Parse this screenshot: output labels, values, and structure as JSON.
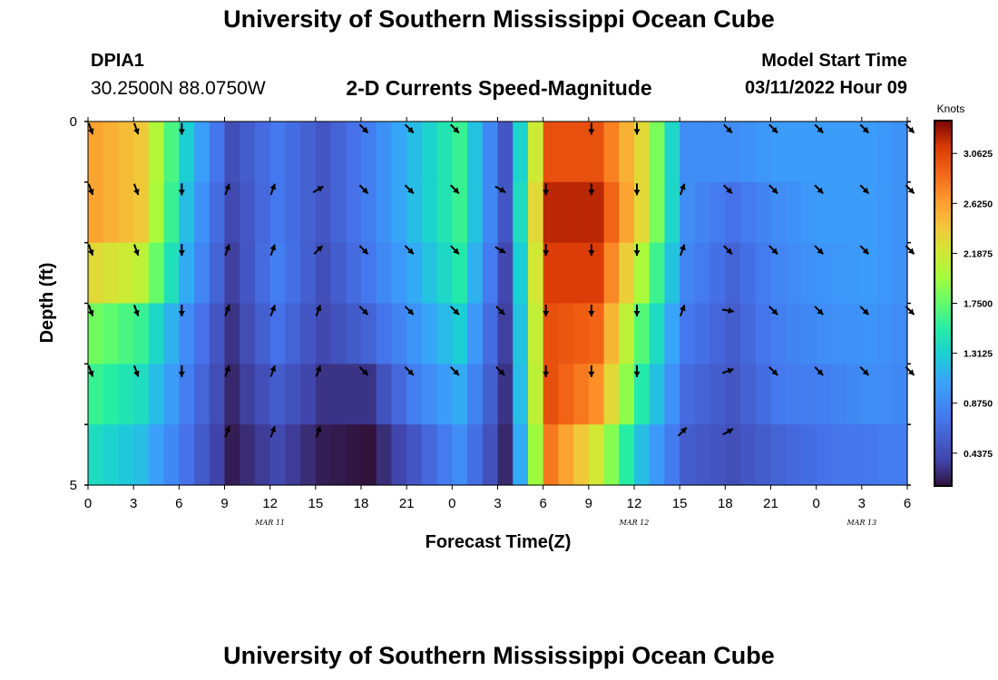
{
  "header": {
    "title": "University of Southern Mississippi Ocean Cube",
    "station": "DPIA1",
    "coordinates": "30.2500N  88.0750W",
    "subtitle": "2-D Currents Speed-Magnitude",
    "model_start_label": "Model Start Time",
    "model_start_value": "03/11/2022 Hour 09"
  },
  "footer": {
    "title": "University of Southern Mississippi Ocean Cube"
  },
  "chart_data": {
    "type": "heatmap",
    "title": "2-D Currents Speed-Magnitude",
    "xlabel": "Forecast Time(Z)",
    "ylabel": "Depth (ft)",
    "x_tick_labels": [
      "0",
      "3",
      "6",
      "9",
      "12",
      "15",
      "18",
      "21",
      "0",
      "3",
      "6",
      "9",
      "12",
      "15",
      "18",
      "21",
      "0",
      "3",
      "6"
    ],
    "date_labels": [
      {
        "text": "MAR 11",
        "at_tick": 4
      },
      {
        "text": "MAR 12",
        "at_tick": 12
      },
      {
        "text": "MAR 13",
        "at_tick": 17
      }
    ],
    "y_range": [
      0,
      5
    ],
    "y_tick_labels": [
      "0",
      "5"
    ],
    "colorbar": {
      "unit": "Knots",
      "range": [
        0.15,
        3.35
      ],
      "tick_labels": [
        "3.0625",
        "2.6250",
        "2.1875",
        "1.7500",
        "1.3125",
        "0.8750",
        "0.4375"
      ],
      "tick_values": [
        3.0625,
        2.625,
        2.1875,
        1.75,
        1.3125,
        0.875,
        0.4375
      ]
    },
    "hours": [
      0,
      3,
      6,
      9,
      12,
      15,
      18,
      21,
      24,
      27,
      30,
      33,
      36,
      39,
      42,
      45,
      48,
      51,
      54
    ],
    "speed_by_layer_knots": [
      [
        2.6,
        2.4,
        1.3,
        0.45,
        0.75,
        0.5,
        0.8,
        1.2,
        1.6,
        0.5,
        3.0,
        3.0,
        2.3,
        0.9,
        0.9,
        1.0,
        1.0,
        1.0,
        0.9
      ],
      [
        2.6,
        2.4,
        1.2,
        0.4,
        0.75,
        0.5,
        0.8,
        1.2,
        1.6,
        0.5,
        3.2,
        3.2,
        2.3,
        0.9,
        0.7,
        0.9,
        1.0,
        1.0,
        0.9
      ],
      [
        2.3,
        2.1,
        1.1,
        0.35,
        0.8,
        0.45,
        0.75,
        1.1,
        1.5,
        0.4,
        3.1,
        3.1,
        2.0,
        0.85,
        0.6,
        0.85,
        0.95,
        1.0,
        0.9
      ],
      [
        1.8,
        1.6,
        0.9,
        0.3,
        0.7,
        0.4,
        0.6,
        0.95,
        1.3,
        0.35,
        3.0,
        2.9,
        1.7,
        0.75,
        0.55,
        0.8,
        0.9,
        0.95,
        0.85
      ],
      [
        1.6,
        1.4,
        0.8,
        0.25,
        0.55,
        0.3,
        0.3,
        0.8,
        1.1,
        0.3,
        3.0,
        2.7,
        1.5,
        0.65,
        0.5,
        0.75,
        0.8,
        0.9,
        0.85
      ],
      [
        1.4,
        1.2,
        0.7,
        0.2,
        0.4,
        0.2,
        0.15,
        0.5,
        0.9,
        0.25,
        2.8,
        2.2,
        1.2,
        0.55,
        0.45,
        0.6,
        0.7,
        0.75,
        0.8
      ]
    ],
    "direction_by_layer_deg": [
      [
        160,
        160,
        180,
        null,
        null,
        null,
        135,
        135,
        135,
        null,
        null,
        180,
        180,
        null,
        135,
        135,
        135,
        135,
        135
      ],
      [
        160,
        160,
        180,
        20,
        20,
        60,
        135,
        135,
        135,
        120,
        180,
        180,
        180,
        20,
        135,
        135,
        135,
        135,
        135
      ],
      [
        160,
        160,
        180,
        20,
        20,
        45,
        135,
        135,
        135,
        120,
        180,
        180,
        180,
        20,
        135,
        135,
        135,
        135,
        135
      ],
      [
        160,
        160,
        180,
        20,
        20,
        20,
        135,
        135,
        135,
        135,
        180,
        180,
        180,
        20,
        100,
        135,
        135,
        135,
        135
      ],
      [
        160,
        160,
        180,
        20,
        20,
        20,
        135,
        135,
        135,
        135,
        180,
        180,
        180,
        null,
        70,
        135,
        135,
        135,
        135
      ],
      [
        null,
        null,
        null,
        20,
        20,
        20,
        null,
        null,
        null,
        null,
        null,
        null,
        null,
        45,
        60,
        null,
        null,
        null,
        null
      ]
    ]
  }
}
